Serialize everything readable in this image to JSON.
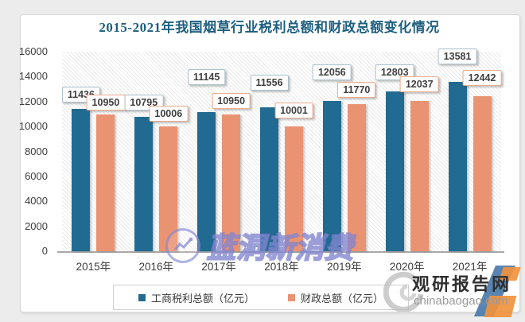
{
  "page": {
    "background_color": "#ececec",
    "card_color": "#ffffff"
  },
  "chart_data": {
    "type": "bar",
    "title": "2015-2021年我国烟草行业税利总额和财政总额变化情况",
    "title_color": "#1e5f80",
    "categories": [
      "2015年",
      "2016年",
      "2017年",
      "2018年",
      "2019年",
      "2020年",
      "2021年"
    ],
    "series": [
      {
        "name": "工商税利总额（亿元）",
        "color": "#216a91",
        "label_border_color": "#a9bfcb",
        "values": [
          11436,
          10795,
          11145,
          11556,
          12056,
          12803,
          13581
        ]
      },
      {
        "name": "财政总额（亿元）",
        "color": "#ea9372",
        "label_border_color": "#ecab8c",
        "values": [
          10950,
          10006,
          10950,
          10001,
          11770,
          12037,
          12442
        ]
      }
    ],
    "xlabel": "",
    "ylabel": "",
    "ylim": [
      0,
      16000
    ],
    "ytick_step": 2000,
    "yticks": [
      0,
      2000,
      4000,
      6000,
      8000,
      10000,
      12000,
      14000,
      16000
    ],
    "grid": false,
    "legend_position": "bottom",
    "plot_background": "diagonal-hatch"
  },
  "watermarks": {
    "center": {
      "text": "蓝洞新消费"
    },
    "bottom_right": {
      "site_name": "观研报告网",
      "site_url": "chinabaogao.com"
    }
  }
}
